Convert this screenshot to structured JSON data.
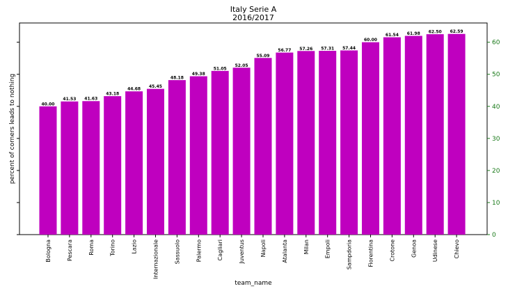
{
  "chart_data": {
    "type": "bar",
    "title": "Italy Serie A",
    "subtitle": "2016/2017",
    "xlabel": "team_name",
    "ylabel": "percent of corners leads to nothing",
    "categories": [
      "Bologna",
      "Pescara",
      "Roma",
      "Torino",
      "Lazio",
      "Internazionale",
      "Sassuolo",
      "Palermo",
      "Cagliari",
      "Juventus",
      "Napoli",
      "Atalanta",
      "Milan",
      "Empoli",
      "Sampdoria",
      "Fiorentina",
      "Crotone",
      "Genoa",
      "Udinese",
      "Chievo"
    ],
    "values": [
      40.0,
      41.53,
      41.63,
      43.18,
      44.68,
      45.45,
      48.18,
      49.38,
      51.05,
      52.05,
      55.09,
      56.77,
      57.26,
      57.31,
      57.44,
      60.0,
      61.54,
      61.98,
      62.5,
      62.59
    ],
    "value_labels": [
      "40.00",
      "41.53",
      "41.63",
      "43.18",
      "44.68",
      "45.45",
      "48.18",
      "49.38",
      "51.05",
      "52.05",
      "55.09",
      "56.77",
      "57.26",
      "57.31",
      "57.44",
      "60.00",
      "61.54",
      "61.98",
      "62.50",
      "62.59"
    ],
    "ylim": [
      0,
      66
    ],
    "y_ticks": [
      "0",
      "10",
      "20",
      "30",
      "40",
      "50",
      "60"
    ],
    "y_axis_side": "right",
    "grid": false,
    "bar_color": "#bf00bf",
    "tick_color": "#1a7a1a"
  }
}
